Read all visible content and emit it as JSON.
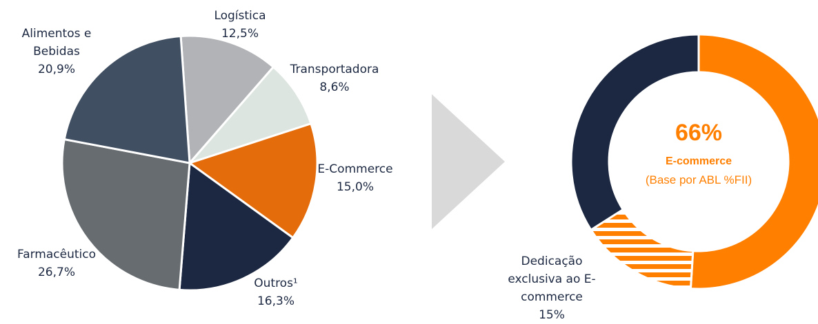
{
  "chart_data": [
    {
      "type": "pie",
      "categories": [
        "Logística",
        "Transportadora",
        "E-Commerce",
        "Outros¹",
        "Farmacêutico",
        "Alimentos e Bebidas"
      ],
      "values": [
        12.5,
        8.6,
        15.0,
        16.3,
        26.7,
        20.9
      ],
      "value_labels": [
        "12,5%",
        "8,6%",
        "15,0%",
        "16,3%",
        "26,7%",
        "20,9%"
      ],
      "colors": [
        "#b1b3b6",
        "#dde5e0",
        "#e46c0a",
        "#1c2841",
        "#676c70",
        "#414f62"
      ]
    },
    {
      "type": "donut",
      "values": [
        51,
        15,
        34
      ],
      "categories": [
        null,
        "Dedicação exclusiva ao E-commerce",
        null
      ],
      "value_labels": [
        null,
        "15%",
        null
      ],
      "colors": [
        "#ff7f00",
        "#ff7f00",
        "#1c2841"
      ],
      "hatched": [
        false,
        true,
        false
      ],
      "center_value": "66%",
      "center_label": "E-commerce",
      "center_sublabel": "(Base por ABL %FII)"
    }
  ]
}
